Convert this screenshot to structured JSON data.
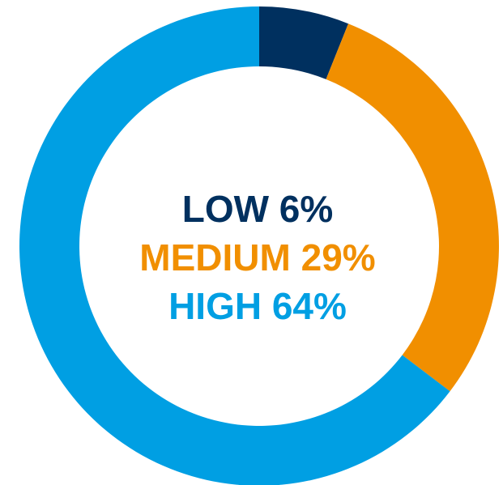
{
  "chart_data": {
    "type": "pie",
    "style": "donut",
    "title": "",
    "slices": [
      {
        "label": "LOW",
        "value": 6,
        "display": "6%",
        "color": "#00305f"
      },
      {
        "label": "MEDIUM",
        "value": 29,
        "display": "29%",
        "color": "#f18f00"
      },
      {
        "label": "HIGH",
        "value": 64,
        "display": "64%",
        "color": "#009fe3"
      }
    ],
    "start_angle_deg": 0,
    "direction": "clockwise",
    "legend": "center"
  }
}
